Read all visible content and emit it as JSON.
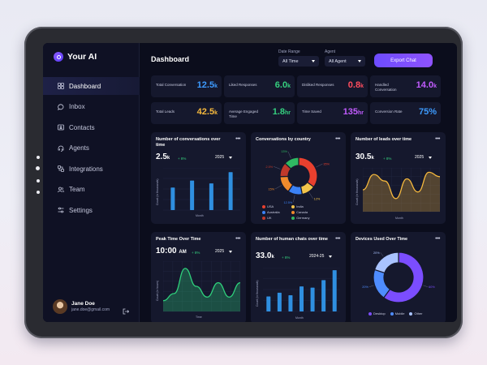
{
  "brand": {
    "name": "Your AI"
  },
  "sidebar": {
    "items": [
      {
        "label": "Dashboard",
        "icon": "grid-icon"
      },
      {
        "label": "Inbox",
        "icon": "chat-icon"
      },
      {
        "label": "Contacts",
        "icon": "contact-card-icon"
      },
      {
        "label": "Agents",
        "icon": "agent-icon"
      },
      {
        "label": "Integrations",
        "icon": "integrations-icon"
      },
      {
        "label": "Team",
        "icon": "team-icon"
      },
      {
        "label": "Settings",
        "icon": "sliders-icon"
      }
    ],
    "active": "Dashboard"
  },
  "user": {
    "name": "Jane Doe",
    "email": "jane.doe@gmail.com"
  },
  "header": {
    "title": "Dashboard",
    "date_range_label": "Date Range",
    "date_range_value": "All Time",
    "agent_label": "Agent",
    "agent_value": "All Agent",
    "export_label": "Export Chat"
  },
  "stats": [
    {
      "label": "Total Conversation",
      "value": "12.5",
      "unit": "k",
      "color": "#3d9bff"
    },
    {
      "label": "Liked Responses",
      "value": "6.0",
      "unit": "k",
      "color": "#35d07f"
    },
    {
      "label": "Disliked Responses",
      "value": "0.8",
      "unit": "k",
      "color": "#ff4d5e"
    },
    {
      "label": "Handled Conversation",
      "value": "14.0",
      "unit": "k",
      "color": "#c25cff"
    },
    {
      "label": "Total Leads",
      "value": "42.5",
      "unit": "k",
      "color": "#f5b83d"
    },
    {
      "label": "Average Engaged Time",
      "value": "1.8",
      "unit": "hr",
      "color": "#35d07f"
    },
    {
      "label": "Time Saved",
      "value": "135",
      "unit": "hr",
      "color": "#c25cff"
    },
    {
      "label": "Conversion Rate",
      "value": "75%",
      "unit": "",
      "color": "#3d9bff"
    }
  ],
  "cards": {
    "conversations": {
      "title": "Number of conversations over time",
      "value": "2.5",
      "unit": "k",
      "trend": "+ 8%",
      "year": "2025",
      "ylabel": "Count (in thousands)",
      "xlabel": "Month"
    },
    "by_country": {
      "title": "Conversations by country"
    },
    "leads": {
      "title": "Number of leads over time",
      "value": "30.5",
      "unit": "k",
      "trend": "+ 8%",
      "year": "2025",
      "ylabel": "Count (in thousands)",
      "xlabel": "Month"
    },
    "peak_time": {
      "title": "Peak Time Over Time",
      "value": "10:00",
      "unit": "AM",
      "trend": "+ 8%",
      "year": "2025",
      "ylabel": "Count (in hours)",
      "xlabel": "Time"
    },
    "human_chats": {
      "title": "Number of human chats over time",
      "value": "33.0",
      "unit": "k",
      "trend": "+ 8%",
      "year": "2024-25",
      "ylabel": "Count (in thousands)",
      "xlabel": "Month"
    },
    "devices": {
      "title": "Devices Used Over Time"
    }
  },
  "colors": {
    "accent": "#7b4dff",
    "bar": "#2f8fe0",
    "card": "#15182d",
    "bg": "#0b0d1c"
  },
  "chart_data": [
    {
      "type": "bar",
      "title": "Number of conversations over time",
      "ylabel": "Count (in thousands)",
      "xlabel": "Month",
      "categories": [
        "1",
        "2",
        "3",
        "4"
      ],
      "values": [
        1.6,
        2.1,
        1.9,
        2.7
      ],
      "ylim": [
        0,
        3
      ]
    },
    {
      "type": "pie",
      "title": "Conversations by country",
      "labels": [
        "USA",
        "India",
        "Australia",
        "Canada",
        "UK",
        "Germany"
      ],
      "values": [
        35,
        12,
        12.5,
        15,
        12.5,
        13
      ],
      "slice_labels": [
        "35%",
        "12%",
        "12.5%",
        "15%",
        "12.5%",
        "13%"
      ],
      "colors": [
        "#e8402e",
        "#f3c44a",
        "#3b82f6",
        "#f08a2c",
        "#c0392b",
        "#2fb862"
      ]
    },
    {
      "type": "area",
      "title": "Number of leads over time",
      "ylabel": "Count (in thousands)",
      "xlabel": "Month",
      "x": [
        1,
        2,
        3,
        4,
        5,
        6,
        7,
        8
      ],
      "values": [
        20,
        34,
        28,
        12,
        30,
        18,
        36,
        32
      ],
      "ylim": [
        0,
        40
      ]
    },
    {
      "type": "area",
      "title": "Peak Time Over Time",
      "ylabel": "Count (in hours)",
      "xlabel": "Time",
      "x": [
        1,
        2,
        3,
        4,
        5,
        6,
        7,
        8
      ],
      "values": [
        3,
        5,
        12,
        7,
        4,
        8,
        4,
        8
      ],
      "ylim": [
        0,
        14
      ]
    },
    {
      "type": "bar",
      "title": "Number of human chats over time",
      "ylabel": "Count (in thousands)",
      "xlabel": "Month",
      "categories": [
        "1",
        "2",
        "3",
        "4",
        "5",
        "6",
        "7"
      ],
      "values": [
        12,
        15,
        13,
        20,
        19,
        25,
        33
      ],
      "ylim": [
        0,
        35
      ]
    },
    {
      "type": "pie",
      "title": "Devices Used Over Time",
      "labels": [
        "Desktop",
        "Mobile",
        "Other"
      ],
      "values": [
        60,
        20,
        20
      ],
      "slice_labels": [
        "60%",
        "20%",
        "20%"
      ],
      "colors": [
        "#7b4dff",
        "#4e8cff",
        "#a9c3ff"
      ]
    }
  ]
}
